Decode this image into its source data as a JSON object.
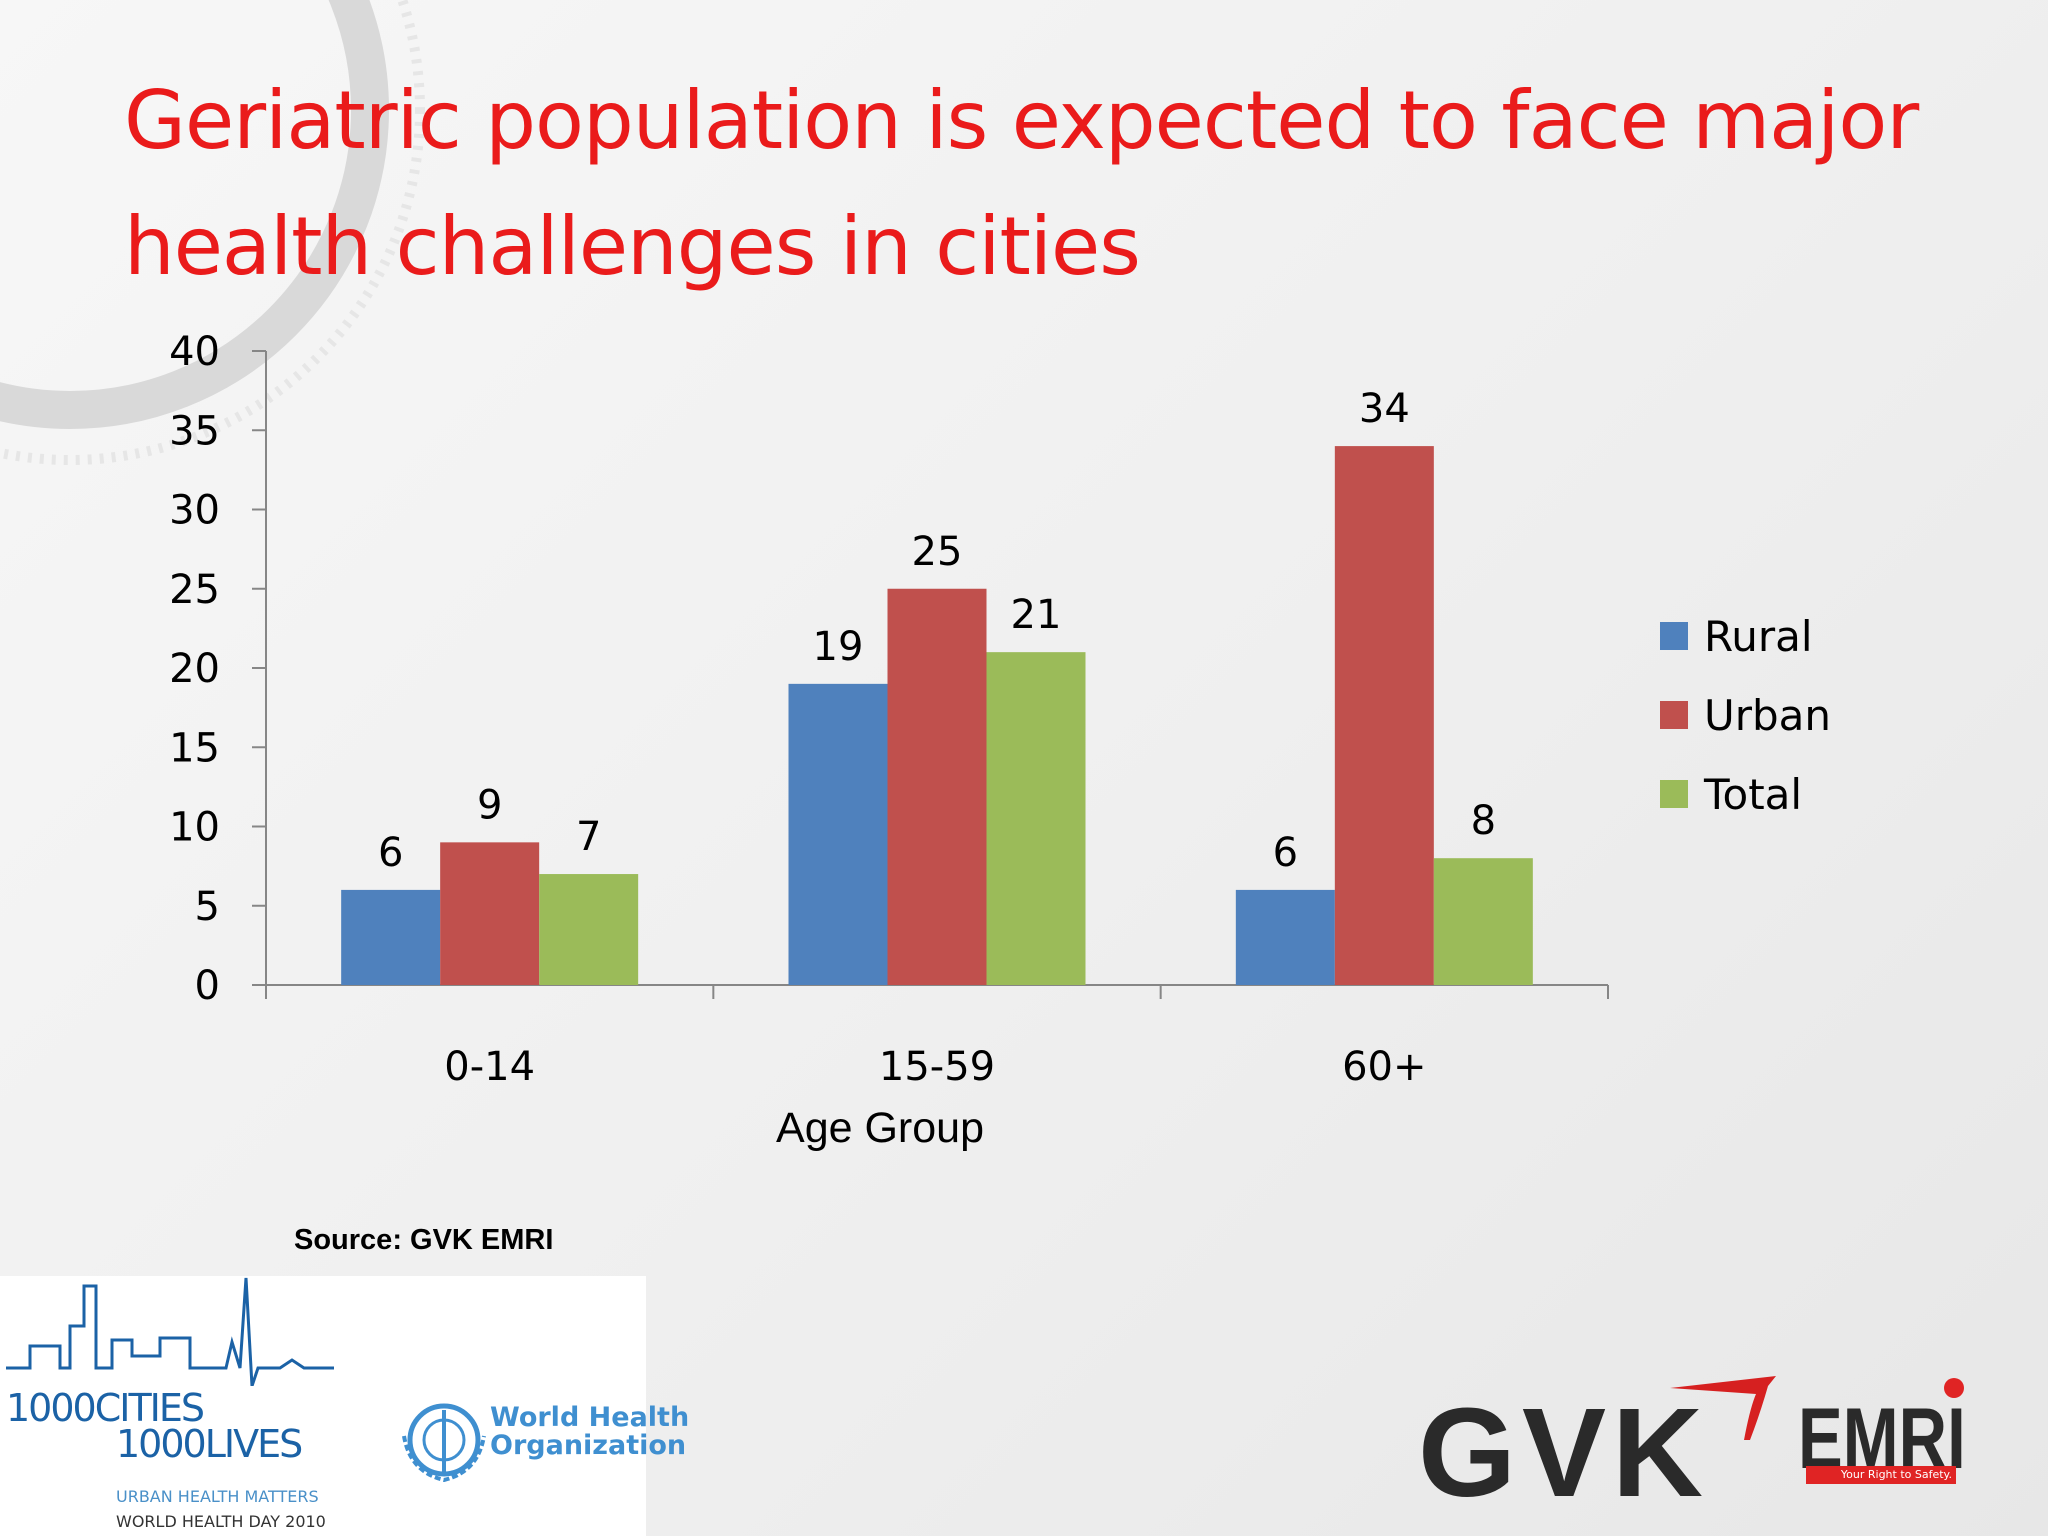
{
  "slide": {
    "title": "Geriatric population is expected to face major health challenges in cities",
    "xaxis_title": "Age Group",
    "source": "Source: GVK EMRI"
  },
  "logos": {
    "cities_line1": "1000CITIES",
    "cities_line2": "1000LIVES",
    "who_line1": "World Health",
    "who_line2": "Organization",
    "tagline_line1": "URBAN HEALTH MATTERS",
    "tagline_line2": "WORLD HEALTH DAY 2010",
    "gvk": "GVK",
    "emri": "EMRI",
    "emri_tagline": "Your Right to Safety."
  },
  "colors": {
    "title": "#ea1b1b",
    "rural": "#4f81bd",
    "urban": "#c0504d",
    "total": "#9bbb59",
    "axis": "#868686",
    "text": "#000000"
  },
  "chart_data": {
    "type": "bar",
    "categories": [
      "0-14",
      "15-59",
      "60+"
    ],
    "series": [
      {
        "name": "Rural",
        "values": [
          6,
          19,
          6
        ]
      },
      {
        "name": "Urban",
        "values": [
          9,
          25,
          34
        ]
      },
      {
        "name": "Total",
        "values": [
          7,
          21,
          8
        ]
      }
    ],
    "xlabel": "Age Group",
    "ylabel": "",
    "ylim": [
      0,
      40
    ],
    "yticks": [
      0,
      5,
      10,
      15,
      20,
      25,
      30,
      35,
      40
    ],
    "legend": "right",
    "grid": false,
    "data_labels": true
  }
}
